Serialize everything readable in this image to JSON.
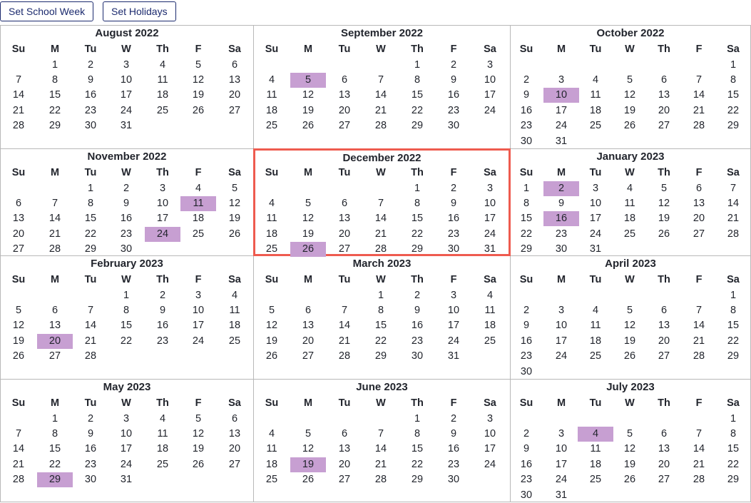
{
  "toolbar": {
    "set_school_week_label": "Set School Week",
    "set_holidays_label": "Set Holidays"
  },
  "colors": {
    "highlight": "#c79fd2",
    "selected_border": "#ee5b4f",
    "button_text": "#1b2a6e"
  },
  "weekday_labels": [
    "Su",
    "M",
    "Tu",
    "W",
    "Th",
    "F",
    "Sa"
  ],
  "months": [
    {
      "id": "2022-08",
      "title": "August 2022",
      "first_weekday": 1,
      "days_in_month": 31,
      "highlighted": [],
      "selected": false
    },
    {
      "id": "2022-09",
      "title": "September 2022",
      "first_weekday": 4,
      "days_in_month": 30,
      "highlighted": [
        5
      ],
      "selected": false
    },
    {
      "id": "2022-10",
      "title": "October 2022",
      "first_weekday": 6,
      "days_in_month": 31,
      "highlighted": [
        10
      ],
      "selected": false
    },
    {
      "id": "2022-11",
      "title": "November 2022",
      "first_weekday": 2,
      "days_in_month": 30,
      "highlighted": [
        11,
        24
      ],
      "selected": false
    },
    {
      "id": "2022-12",
      "title": "December 2022",
      "first_weekday": 4,
      "days_in_month": 31,
      "highlighted": [
        26
      ],
      "selected": true
    },
    {
      "id": "2023-01",
      "title": "January 2023",
      "first_weekday": 0,
      "days_in_month": 31,
      "highlighted": [
        2,
        16
      ],
      "selected": false
    },
    {
      "id": "2023-02",
      "title": "February 2023",
      "first_weekday": 3,
      "days_in_month": 28,
      "highlighted": [
        20
      ],
      "selected": false
    },
    {
      "id": "2023-03",
      "title": "March 2023",
      "first_weekday": 3,
      "days_in_month": 31,
      "highlighted": [],
      "selected": false
    },
    {
      "id": "2023-04",
      "title": "April 2023",
      "first_weekday": 6,
      "days_in_month": 30,
      "highlighted": [],
      "selected": false
    },
    {
      "id": "2023-05",
      "title": "May 2023",
      "first_weekday": 1,
      "days_in_month": 31,
      "highlighted": [
        29
      ],
      "selected": false
    },
    {
      "id": "2023-06",
      "title": "June 2023",
      "first_weekday": 4,
      "days_in_month": 30,
      "highlighted": [
        19
      ],
      "selected": false
    },
    {
      "id": "2023-07",
      "title": "July 2023",
      "first_weekday": 6,
      "days_in_month": 31,
      "highlighted": [
        4
      ],
      "selected": false
    }
  ]
}
